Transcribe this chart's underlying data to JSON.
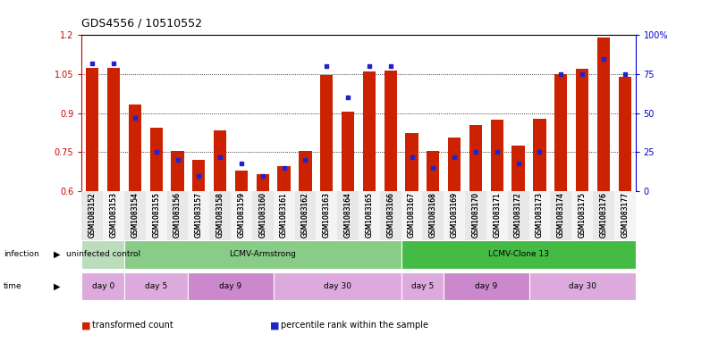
{
  "title": "GDS4556 / 10510552",
  "samples": [
    "GSM1083152",
    "GSM1083153",
    "GSM1083154",
    "GSM1083155",
    "GSM1083156",
    "GSM1083157",
    "GSM1083158",
    "GSM1083159",
    "GSM1083160",
    "GSM1083161",
    "GSM1083162",
    "GSM1083163",
    "GSM1083164",
    "GSM1083165",
    "GSM1083166",
    "GSM1083167",
    "GSM1083168",
    "GSM1083169",
    "GSM1083170",
    "GSM1083171",
    "GSM1083172",
    "GSM1083173",
    "GSM1083174",
    "GSM1083175",
    "GSM1083176",
    "GSM1083177"
  ],
  "red_values": [
    1.075,
    1.075,
    0.935,
    0.845,
    0.755,
    0.72,
    0.835,
    0.68,
    0.665,
    0.695,
    0.755,
    1.045,
    0.905,
    1.06,
    1.065,
    0.825,
    0.755,
    0.805,
    0.855,
    0.875,
    0.775,
    0.88,
    1.05,
    1.07,
    1.19,
    1.04
  ],
  "blue_values": [
    82,
    82,
    47,
    25,
    20,
    10,
    22,
    18,
    10,
    15,
    20,
    80,
    60,
    80,
    80,
    22,
    15,
    22,
    25,
    25,
    18,
    25,
    75,
    75,
    85,
    75
  ],
  "ylim_left": [
    0.6,
    1.2
  ],
  "ylim_right": [
    0,
    100
  ],
  "yticks_left": [
    0.6,
    0.75,
    0.9,
    1.05,
    1.2
  ],
  "yticks_right": [
    0,
    25,
    50,
    75,
    100
  ],
  "ytick_labels_right": [
    "0",
    "25",
    "50",
    "75",
    "100%"
  ],
  "bar_color": "#cc2200",
  "dot_color": "#2222cc",
  "background_color": "#ffffff",
  "infection_groups": [
    {
      "label": "uninfected control",
      "start": 0,
      "end": 2,
      "color": "#bbddbb"
    },
    {
      "label": "LCMV-Armstrong",
      "start": 2,
      "end": 15,
      "color": "#88cc88"
    },
    {
      "label": "LCMV-Clone 13",
      "start": 15,
      "end": 26,
      "color": "#44bb44"
    }
  ],
  "time_groups": [
    {
      "label": "day 0",
      "start": 0,
      "end": 2,
      "color": "#ddaadd"
    },
    {
      "label": "day 5",
      "start": 2,
      "end": 5,
      "color": "#ddaadd"
    },
    {
      "label": "day 9",
      "start": 5,
      "end": 9,
      "color": "#cc88cc"
    },
    {
      "label": "day 30",
      "start": 9,
      "end": 15,
      "color": "#ddaadd"
    },
    {
      "label": "day 5",
      "start": 15,
      "end": 17,
      "color": "#ddaadd"
    },
    {
      "label": "day 9",
      "start": 17,
      "end": 21,
      "color": "#cc88cc"
    },
    {
      "label": "day 30",
      "start": 21,
      "end": 26,
      "color": "#ddaadd"
    }
  ],
  "legend_items": [
    {
      "label": "transformed count",
      "color": "#cc2200"
    },
    {
      "label": "percentile rank within the sample",
      "color": "#2222cc"
    }
  ],
  "gridline_values": [
    0.75,
    0.9,
    1.05
  ]
}
